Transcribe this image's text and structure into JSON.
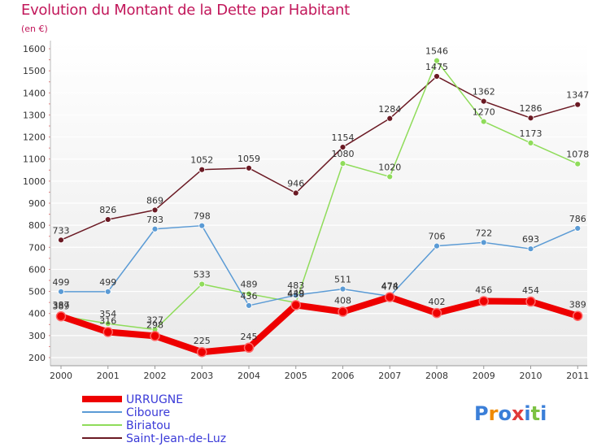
{
  "title": "Evolution du Montant de la Dette par Habitant",
  "subtitle": "(en €)",
  "brand": "Proxiti",
  "chart_data": {
    "type": "line",
    "title": "Evolution du Montant de la Dette par Habitant",
    "subtitle": "(en €)",
    "xlabel": "",
    "ylabel": "",
    "x": [
      "2000",
      "2001",
      "2002",
      "2003",
      "2004",
      "2005",
      "2006",
      "2007",
      "2008",
      "2009",
      "2010",
      "2011"
    ],
    "ylim": [
      200,
      1600
    ],
    "yticks": [
      200,
      300,
      400,
      500,
      600,
      700,
      800,
      900,
      1000,
      1100,
      1200,
      1300,
      1400,
      1500,
      1600
    ],
    "grid": "horizontal",
    "legend": "bottom-left",
    "series": [
      {
        "name": "Saint-Jean-de-Luz",
        "color": "#6b1a24",
        "values": [
          733,
          826,
          869,
          1052,
          1059,
          946,
          1154,
          1284,
          1475,
          1362,
          1286,
          1347
        ]
      },
      {
        "name": "Biriatou",
        "color": "#8fdc5a",
        "values": [
          389,
          354,
          327,
          533,
          489,
          449,
          1080,
          1020,
          1546,
          1270,
          1173,
          1078
        ]
      },
      {
        "name": "Ciboure",
        "color": "#5b9bd5",
        "values": [
          499,
          499,
          783,
          798,
          436,
          483,
          511,
          478,
          706,
          722,
          693,
          786
        ]
      },
      {
        "name": "URRUGNE",
        "color": "#ee0000",
        "values": [
          387,
          316,
          298,
          225,
          245,
          438,
          408,
          474,
          402,
          456,
          454,
          389
        ]
      }
    ]
  }
}
